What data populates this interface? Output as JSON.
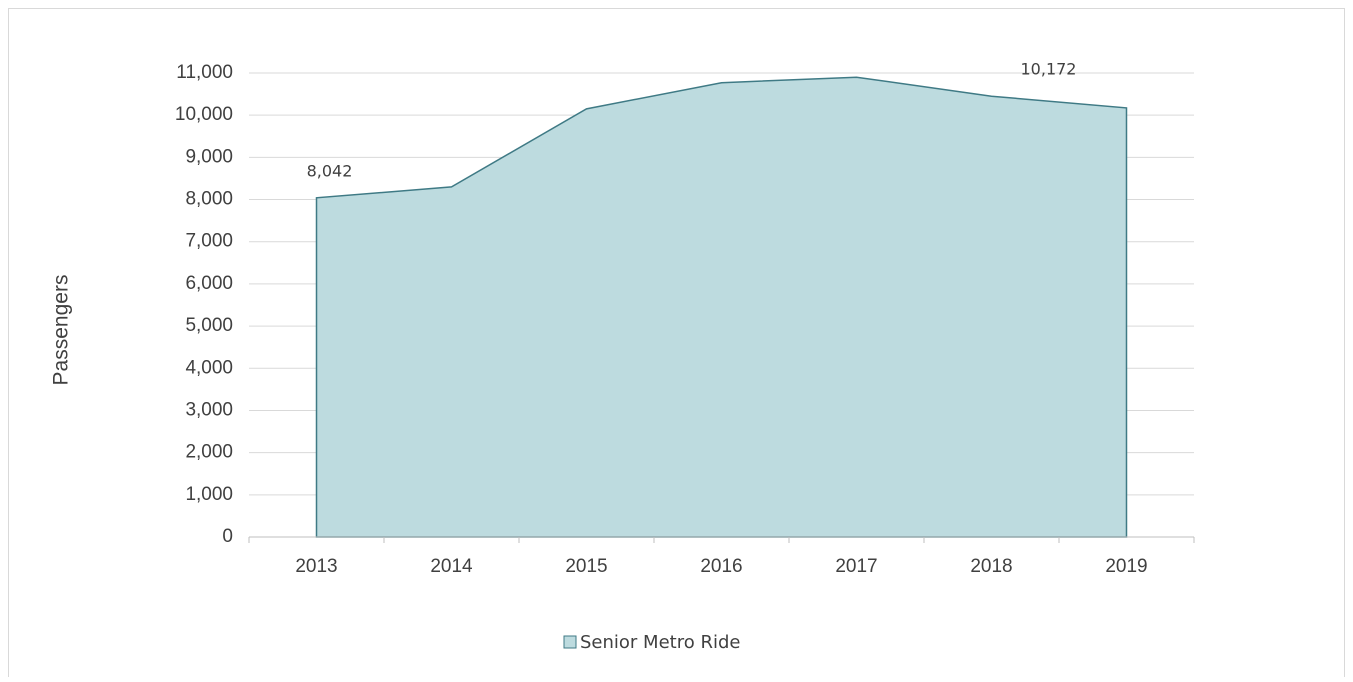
{
  "chart_data": {
    "type": "area",
    "y_label": "Passengers",
    "categories": [
      "2013",
      "2014",
      "2015",
      "2016",
      "2017",
      "2018",
      "2019"
    ],
    "series": [
      {
        "name": "Senior Metro Ride",
        "color": "#bddbdf",
        "edge_color": "#3f7a85",
        "values": [
          8042,
          8300,
          10150,
          10770,
          10900,
          10450,
          10172
        ],
        "value_labels": [
          "8,042",
          null,
          null,
          null,
          null,
          null,
          "10,172"
        ]
      }
    ],
    "ylim": [
      0,
      11000
    ],
    "yticks": [
      0,
      {
        "value": 1000,
        "label": "1,000"
      },
      {
        "value": 2000,
        "label": "2,000"
      },
      {
        "value": 3000,
        "label": "3,000"
      },
      {
        "value": 4000,
        "label": "4,000"
      },
      {
        "value": 5000,
        "label": "5,000"
      },
      {
        "value": 6000,
        "label": "6,000"
      },
      {
        "value": 7000,
        "label": "7,000"
      },
      {
        "value": 8000,
        "label": "8,000"
      },
      {
        "value": 9000,
        "label": "9,000"
      },
      {
        "value": 10000,
        "label": "10,000"
      },
      {
        "value": 11000,
        "label": "11,000"
      }
    ],
    "grid": true,
    "legend": "bottom"
  }
}
